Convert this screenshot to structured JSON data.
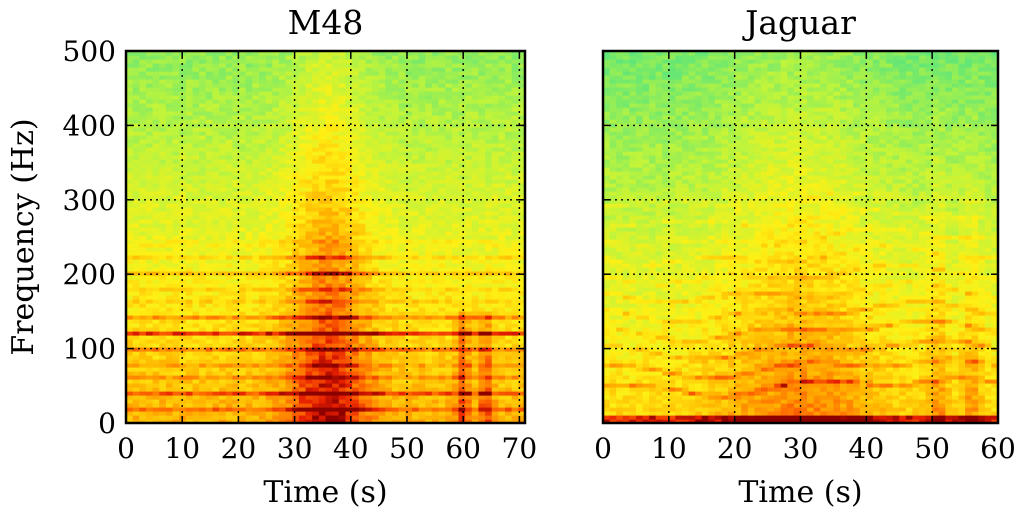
{
  "chart_data": [
    {
      "type": "heatmap",
      "title": "M48",
      "xlabel": "Time (s)",
      "ylabel": "Frequency (Hz)",
      "xlim": [
        0,
        71
      ],
      "ylim": [
        0,
        500
      ],
      "xticks": [
        0,
        10,
        20,
        30,
        40,
        50,
        60,
        70
      ],
      "yticks": [
        0,
        100,
        200,
        300,
        400,
        500
      ],
      "grid": true,
      "colormap": "jet (visible range green to dark red)",
      "features": {
        "harmonic_lines_hz": [
          20,
          40,
          60,
          80,
          100,
          122,
          142,
          162,
          182,
          202,
          222,
          242
        ],
        "strongest_line_hz": 122,
        "peak_energy_time_s": [
          30,
          42
        ],
        "transient_times_s": [
          60,
          64
        ]
      }
    },
    {
      "type": "heatmap",
      "title": "Jaguar",
      "xlabel": "Time (s)",
      "ylabel": "",
      "xlim": [
        0,
        60
      ],
      "ylim": [
        0,
        500
      ],
      "xticks": [
        0,
        10,
        20,
        30,
        40,
        50,
        60
      ],
      "yticks": [
        0,
        100,
        200,
        300,
        400,
        500
      ],
      "grid": true,
      "colormap": "jet (visible range green to dark red)",
      "features": {
        "modulated_harmonics_hz": [
          50,
          75,
          100,
          125,
          150,
          175,
          200,
          225,
          250,
          275,
          300
        ],
        "strong_low_band_hz": [
          0,
          10
        ],
        "peak_energy_time_s": [
          20,
          40
        ],
        "transient_times_s": [
          51,
          56
        ]
      }
    }
  ]
}
